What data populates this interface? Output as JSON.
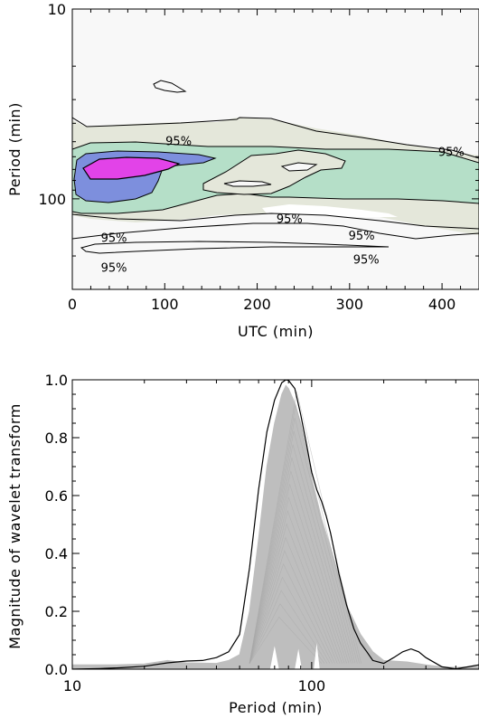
{
  "chart_data": [
    {
      "type": "contour",
      "title": "",
      "xlabel": "UTC (min)",
      "ylabel": "Period (min)",
      "xlim": [
        0,
        440
      ],
      "ylim": [
        10,
        300
      ],
      "yscale": "log",
      "yinverted": true,
      "x_ticks": [
        0,
        100,
        200,
        300,
        400
      ],
      "y_ticks": [
        10,
        100
      ],
      "grid": false,
      "contour_label": "95%",
      "fill_colors": [
        "#f8f8f8",
        "#e4e7da",
        "#b5dfc8",
        "#7d8fdd",
        "#e243e8"
      ],
      "contour_labels": [
        {
          "x": 115,
          "y": 50
        },
        {
          "x": 410,
          "y": 57
        },
        {
          "x": 235,
          "y": 128
        },
        {
          "x": 45,
          "y": 161
        },
        {
          "x": 313,
          "y": 157
        },
        {
          "x": 45,
          "y": 232
        },
        {
          "x": 318,
          "y": 210
        }
      ],
      "regions": [
        {
          "level": "high",
          "x": [
            10,
            10,
            20,
            50,
            80,
            110,
            118,
            115,
            95,
            60,
            30
          ],
          "y": [
            75,
            88,
            95,
            98,
            94,
            85,
            78,
            72,
            70,
            70,
            72
          ]
        },
        {
          "level": "mid",
          "x": [
            5,
            5,
            40,
            80,
            150,
            160,
            150,
            100,
            40
          ],
          "y": [
            65,
            105,
            125,
            125,
            100,
            75,
            68,
            62,
            62
          ]
        }
      ]
    },
    {
      "type": "line",
      "title": "",
      "xlabel": "Period (min)",
      "ylabel": "Magnitude of wavelet transform",
      "xscale": "log",
      "xlim": [
        10,
        500
      ],
      "ylim": [
        0,
        1.0
      ],
      "x_ticks": [
        10,
        100
      ],
      "y_ticks": [
        0.0,
        0.2,
        0.4,
        0.6,
        0.8,
        1.0
      ],
      "grid": false,
      "series": [
        {
          "color": "#000000",
          "x": [
            10,
            13,
            16,
            20,
            25,
            30,
            35,
            40,
            45,
            50,
            55,
            60,
            65,
            70,
            75,
            78,
            80,
            85,
            90,
            95,
            100,
            105,
            110,
            115,
            120,
            130,
            140,
            150,
            160,
            170,
            180,
            200,
            220,
            240,
            260,
            280,
            300,
            350,
            400,
            450,
            500
          ],
          "y": [
            0.0,
            0.002,
            0.005,
            0.01,
            0.022,
            0.028,
            0.03,
            0.04,
            0.06,
            0.12,
            0.35,
            0.62,
            0.82,
            0.93,
            0.99,
            1.0,
            0.998,
            0.97,
            0.88,
            0.78,
            0.68,
            0.62,
            0.58,
            0.53,
            0.47,
            0.33,
            0.22,
            0.14,
            0.09,
            0.06,
            0.03,
            0.02,
            0.04,
            0.06,
            0.07,
            0.06,
            0.04,
            0.008,
            0.001,
            0.008,
            0.015
          ]
        },
        {
          "color": "#bebebe",
          "fill": true,
          "x_upper": [
            10,
            15,
            20,
            25,
            30,
            40,
            45,
            50,
            55,
            60,
            65,
            70,
            75,
            78,
            80,
            85,
            90,
            95,
            100,
            110,
            120,
            130,
            140,
            160,
            180,
            200,
            250,
            300,
            350,
            400,
            500
          ],
          "upper": [
            0.015,
            0.015,
            0.018,
            0.03,
            0.022,
            0.02,
            0.03,
            0.05,
            0.2,
            0.45,
            0.7,
            0.85,
            0.95,
            0.98,
            0.97,
            0.92,
            0.85,
            0.76,
            0.66,
            0.52,
            0.42,
            0.32,
            0.22,
            0.12,
            0.06,
            0.03,
            0.025,
            0.015,
            0.008,
            0.006,
            0.01
          ]
        }
      ]
    }
  ]
}
